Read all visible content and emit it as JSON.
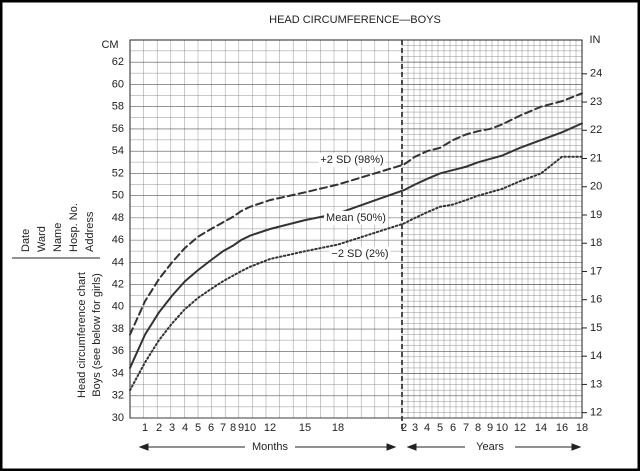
{
  "chart_data": {
    "type": "line",
    "title": "HEAD CIRCUMFERENCE—BOYS",
    "side_labels": [
      "Date",
      "Ward",
      "Name",
      "Hosp. No.",
      "Address"
    ],
    "chart_caption": [
      "Head circumference chart",
      "Boys (see below for girls)"
    ],
    "y_label": "CM",
    "y2_label": "IN",
    "x_labels": [
      "Months",
      "Years"
    ],
    "categories": [
      null,
      "1",
      "2",
      "3",
      "4",
      "5",
      "6",
      "7",
      "8",
      "9",
      "10",
      "12",
      "15",
      "18",
      "2",
      "3",
      "4",
      "5",
      "6",
      "7",
      "8",
      "9",
      "10",
      "12",
      "14",
      "16",
      "18"
    ],
    "series": [
      {
        "name": "+2 SD (98%)",
        "color": "#333333",
        "style": "dashed",
        "values": [
          37.5,
          40.5,
          42.5,
          44,
          45.3,
          46.3,
          47,
          47.6,
          48.1,
          48.6,
          49,
          49.6,
          50.3,
          51,
          52.8,
          53.5,
          54,
          54.3,
          55,
          55.5,
          55.8,
          56,
          56.4,
          57.2,
          58,
          58.5,
          59.2
        ]
      },
      {
        "name": "Mean (50%)",
        "color": "#333333",
        "style": "solid",
        "values": [
          34.5,
          37.5,
          39.5,
          41,
          42.3,
          43.3,
          44.2,
          45,
          45.5,
          46,
          46.4,
          47,
          47.8,
          48.4,
          50.5,
          51,
          51.5,
          52,
          52.3,
          52.6,
          53,
          53.3,
          53.6,
          54.3,
          55,
          55.7,
          56.5
        ]
      },
      {
        "name": "−2 SD (2%)",
        "color": "#333333",
        "style": "dotted",
        "values": [
          32.5,
          35,
          37,
          38.5,
          39.8,
          40.8,
          41.6,
          42.3,
          42.8,
          43.2,
          43.6,
          44.3,
          45,
          45.6,
          47.5,
          48,
          48.5,
          49,
          49.2,
          49.6,
          50,
          50.3,
          50.6,
          51.3,
          52,
          53.5,
          53.5
        ]
      }
    ],
    "ylim": [
      30,
      64
    ],
    "yticks": [
      30,
      32,
      34,
      36,
      38,
      40,
      42,
      44,
      46,
      48,
      50,
      52,
      54,
      56,
      58,
      60,
      62
    ],
    "y2lim": [
      11.811,
      25.197
    ],
    "y2ticks": [
      12,
      13,
      14,
      15,
      16,
      17,
      18,
      19,
      20,
      21,
      22,
      23,
      24
    ],
    "grid": true
  }
}
